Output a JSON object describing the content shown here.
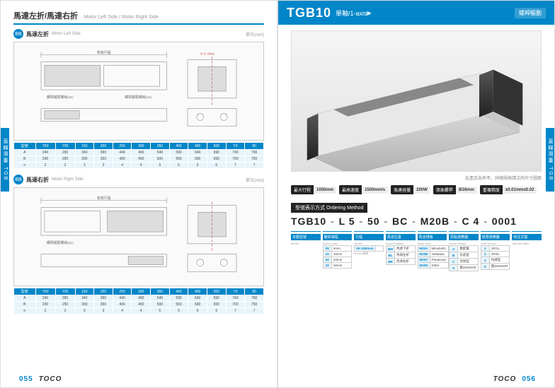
{
  "left": {
    "title_zh": "馬達左折/馬達右折",
    "title_en": "Motor Left Side / Motor Right Side",
    "sections": [
      {
        "badge": "BB",
        "label_zh": "馬達左折",
        "label_en": "Motor Left Side",
        "unit": "單位(mm)"
      },
      {
        "badge": "BB",
        "label_zh": "馬達右折",
        "label_en": "Motor Right Side",
        "unit": "單位(mm)"
      }
    ],
    "table_head": [
      "型號",
      "Y50",
      "Y00",
      "150",
      "200",
      "250",
      "300",
      "350",
      "400",
      "450",
      "500",
      "Y0",
      "80"
    ],
    "table_rows": [
      [
        "A",
        "240",
        "290",
        "340",
        "390",
        "440",
        "490",
        "540",
        "590",
        "640",
        "690",
        "740",
        "790"
      ],
      [
        "B",
        "200",
        "250",
        "300",
        "350",
        "400",
        "450",
        "500",
        "550",
        "600",
        "650",
        "700",
        "750"
      ],
      [
        "n",
        "2",
        "2",
        "3",
        "3",
        "4",
        "4",
        "5",
        "5",
        "6",
        "6",
        "7",
        "7"
      ]
    ],
    "page_num": "055",
    "brand": "TOCO"
  },
  "right": {
    "model": "TGB10",
    "subtitle": "單軸/1-axis",
    "tag": "螺桿驅動",
    "side_tab": "直線滑臺 TGB",
    "photo_caption": "此產品為參考，詳細規格請洽詢尺寸圖面",
    "pills": [
      {
        "lbl": "最大行程",
        "val": "1050mm"
      },
      {
        "lbl": "最高速度",
        "val": "1500mm/s"
      },
      {
        "lbl": "馬達容量",
        "val": "200W"
      },
      {
        "lbl": "滾珠螺桿",
        "val": "Ø16mm"
      },
      {
        "lbl": "重複精度",
        "val": "±0.01mm±0.02"
      }
    ],
    "order_title": "型號表示方式 Ordering Method",
    "order_code": [
      "TGB10",
      "L 5",
      "50",
      "BC",
      "M20B",
      "C 4",
      "0001"
    ],
    "cols": [
      {
        "hd": "本體型號",
        "sub": "Model",
        "rows": []
      },
      {
        "hd": "螺桿導程",
        "sub": "Screw Lead",
        "rows": [
          [
            "05",
            "5mm"
          ],
          [
            "10",
            "10mm"
          ],
          [
            "20",
            "20mm"
          ],
          [
            "32",
            "32mm"
          ]
        ]
      },
      {
        "hd": "行程",
        "sub": "Stroke",
        "rows": [
          [
            "50-1050mm",
            ""
          ]
        ],
        "note": "50mm/間距"
      },
      {
        "hd": "馬達位置",
        "sub": "Motor Position",
        "rows": [
          [
            "BM",
            "馬達下折"
          ],
          [
            "BL",
            "馬達左折"
          ],
          [
            "BR",
            "馬達右折"
          ]
        ]
      },
      {
        "hd": "馬達規格",
        "sub": "Motor Size",
        "rows": [
          [
            "M20A",
            "Mitsubishi"
          ],
          [
            "M20B",
            "Yaskawa"
          ],
          [
            "M20C",
            "Panasonic"
          ],
          [
            "M20D",
            "Delta"
          ]
        ]
      },
      {
        "hd": "原點感應器",
        "sub": "Home Sensor",
        "rows": [
          [
            "A",
            "無配置"
          ],
          [
            "B",
            "光遮型"
          ],
          [
            "C",
            "近接型"
          ],
          [
            "9",
            "無SENSOR"
          ]
        ]
      },
      {
        "hd": "極限感應器",
        "sub": "Limit Sensor",
        "rows": [
          [
            "1",
            "1R/1L"
          ],
          [
            "2",
            "2R/2L"
          ],
          [
            "3",
            "內建型"
          ],
          [
            "9",
            "無SENSOR"
          ]
        ]
      },
      {
        "hd": "特注式樣",
        "sub": "Special Order",
        "rows": []
      }
    ],
    "page_num": "056",
    "brand": "TOCO"
  },
  "colors": {
    "brand": "#0086c9",
    "dark": "#222"
  }
}
